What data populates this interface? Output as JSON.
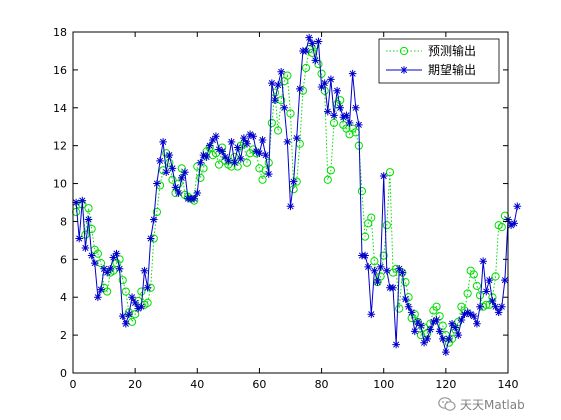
{
  "chart_data": {
    "type": "line",
    "title": "",
    "xlabel": "",
    "ylabel": "",
    "xlim": [
      0,
      140
    ],
    "ylim": [
      0,
      18
    ],
    "xticks": [
      0,
      20,
      40,
      60,
      80,
      100,
      120,
      140
    ],
    "yticks": [
      0,
      2,
      4,
      6,
      8,
      10,
      12,
      14,
      16,
      18
    ],
    "grid": false,
    "legend_position": "top-right",
    "series": [
      {
        "name": "预测输出",
        "color": "#00dd00",
        "style": "dotted-circle",
        "values": [
          8.5,
          8.9,
          8.9,
          7.3,
          8.7,
          7.6,
          6.5,
          6.3,
          5.8,
          4.5,
          4.3,
          5.3,
          5.4,
          5.8,
          6.0,
          4.9,
          4.3,
          3.2,
          2.7,
          3.1,
          3.8,
          4.3,
          3.6,
          3.7,
          4.5,
          7.1,
          8.5,
          9.9,
          10.7,
          11.6,
          11.1,
          10.2,
          9.5,
          10.0,
          10.8,
          9.4,
          9.3,
          9.2,
          9.1,
          10.9,
          10.3,
          10.8,
          11.7,
          11.9,
          11.5,
          11.6,
          11.0,
          11.9,
          11.2,
          11.0,
          10.9,
          11.4,
          10.9,
          12.0,
          12.1,
          11.1,
          11.6,
          11.8,
          11.6,
          10.8,
          10.2,
          10.7,
          11.1,
          13.2,
          14.8,
          12.8,
          14.4,
          15.4,
          15.7,
          13.7,
          9.7,
          10.1,
          12.1,
          14.9,
          16.1,
          17.1,
          16.9,
          17.3,
          16.3,
          15.8,
          14.9,
          10.2,
          10.7,
          13.2,
          14.2,
          14.4,
          13.1,
          12.9,
          12.6,
          12.9,
          12.7,
          12.0,
          9.6,
          7.2,
          7.9,
          8.2,
          5.9,
          4.8,
          5.1,
          6.2,
          7.8,
          10.6,
          5.3,
          5.5,
          3.4,
          5.3,
          4.8,
          4.0,
          2.9,
          3.1,
          2.7,
          2.0,
          2.4,
          2.1,
          2.6,
          3.3,
          3.5,
          3.0,
          2.5,
          2.0,
          1.6,
          1.8,
          2.3,
          2.7,
          3.5,
          3.3,
          4.2,
          5.4,
          5.2,
          4.6,
          4.1,
          3.5,
          3.6,
          3.6,
          4.0,
          5.1,
          7.8,
          7.7,
          8.3
        ]
      },
      {
        "name": "期望输出",
        "color": "#0000cc",
        "style": "solid-star",
        "values": [
          9.0,
          7.1,
          9.1,
          6.6,
          8.1,
          6.2,
          5.8,
          4.0,
          4.4,
          5.5,
          5.3,
          5.5,
          6.1,
          6.3,
          5.5,
          3.0,
          2.6,
          3.1,
          4.0,
          3.7,
          3.4,
          3.5,
          5.4,
          4.5,
          7.1,
          8.1,
          10.0,
          11.2,
          12.2,
          10.6,
          11.5,
          10.8,
          9.8,
          9.5,
          10.3,
          10.6,
          9.2,
          9.2,
          9.2,
          9.5,
          11.1,
          11.5,
          11.4,
          12.0,
          12.3,
          12.5,
          11.8,
          11.7,
          11.4,
          11.2,
          12.2,
          11.1,
          11.9,
          11.3,
          12.4,
          12.1,
          12.6,
          12.5,
          11.7,
          11.6,
          12.3,
          11.5,
          10.5,
          15.3,
          14.4,
          15.2,
          15.9,
          14.0,
          12.2,
          8.8,
          10.1,
          12.4,
          15.0,
          17.0,
          17.0,
          17.7,
          17.4,
          16.5,
          17.5,
          15.1,
          15.3,
          13.8,
          15.5,
          13.6,
          14.9,
          14.0,
          13.5,
          13.6,
          13.2,
          15.8,
          14.0,
          13.1,
          6.2,
          6.2,
          5.6,
          3.1,
          5.4,
          4.8,
          5.6,
          10.4,
          5.4,
          4.5,
          4.5,
          1.5,
          5.5,
          5.3,
          3.9,
          3.5,
          3.2,
          2.2,
          2.7,
          2.5,
          1.6,
          1.8,
          2.3,
          2.7,
          2.8,
          2.2,
          1.8,
          1.1,
          1.8,
          2.6,
          2.4,
          2.0,
          2.8,
          3.1,
          3.2,
          3.1,
          3.0,
          2.6,
          3.5,
          5.9,
          4.3,
          4.9,
          3.8,
          3.5,
          3.2,
          3.5,
          4.9,
          8.1,
          7.8,
          7.9,
          8.8
        ]
      }
    ]
  },
  "watermark": {
    "text": "天天Matlab",
    "icon": "wechat-icon"
  }
}
